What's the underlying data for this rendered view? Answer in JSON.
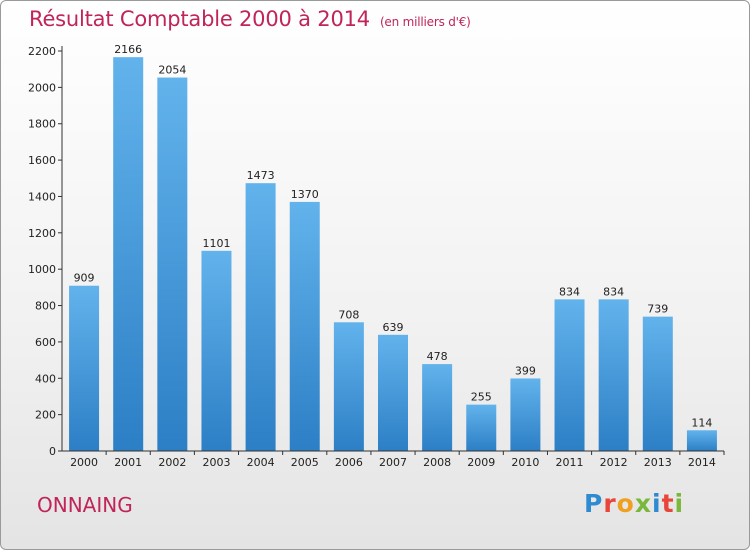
{
  "chart_data": {
    "type": "bar",
    "title": "Résultat Comptable 2000 à 2014",
    "subtitle": "(en milliers d'€)",
    "categories": [
      "2000",
      "2001",
      "2002",
      "2003",
      "2004",
      "2005",
      "2006",
      "2007",
      "2008",
      "2009",
      "2010",
      "2011",
      "2012",
      "2013",
      "2014"
    ],
    "values": [
      909,
      2166,
      2054,
      1101,
      1473,
      1370,
      708,
      639,
      478,
      255,
      399,
      834,
      834,
      739,
      114
    ],
    "ylim": [
      0,
      2200
    ],
    "yticks": [
      0,
      200,
      400,
      600,
      800,
      1000,
      1200,
      1400,
      1600,
      1800,
      2000,
      2200
    ],
    "grid": false,
    "bar_color": "#3c93d8"
  },
  "footer": {
    "town": "ONNAING",
    "logo_letters": [
      {
        "ch": "P",
        "color": "#2f8bd1"
      },
      {
        "ch": "r",
        "color": "#e8463a"
      },
      {
        "ch": "o",
        "color": "#f0a020"
      },
      {
        "ch": "x",
        "color": "#79b83a"
      },
      {
        "ch": "i",
        "color": "#2f8bd1"
      },
      {
        "ch": "t",
        "color": "#e8463a"
      },
      {
        "ch": "i",
        "color": "#79b83a"
      }
    ]
  }
}
